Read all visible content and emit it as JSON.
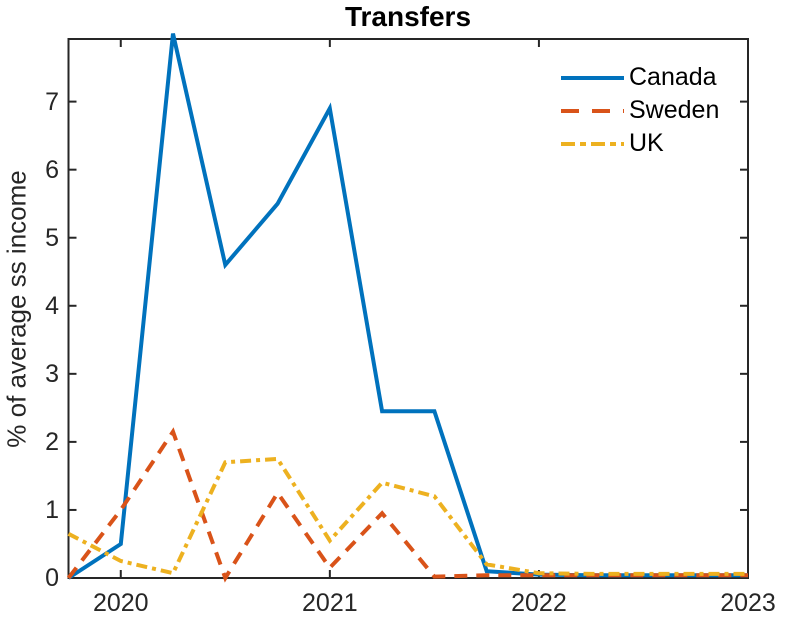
{
  "figure": {
    "background": "#FFFFFF"
  },
  "chart_data": {
    "type": "line",
    "title": "Transfers",
    "xlabel": "",
    "ylabel": "% of average ss income",
    "x": [
      2019.75,
      2020.0,
      2020.25,
      2020.5,
      2020.75,
      2021.0,
      2021.25,
      2021.5,
      2021.75,
      2022.0,
      2022.25,
      2022.5,
      2022.75,
      2023.0
    ],
    "series": [
      {
        "name": "Canada",
        "color": "#0072BD",
        "style": "solid",
        "values": [
          0,
          0.5,
          8.0,
          4.6,
          5.5,
          6.9,
          2.45,
          2.45,
          0.1,
          0.05,
          0.04,
          0.04,
          0.04,
          0.04
        ]
      },
      {
        "name": "Sweden",
        "color": "#D95319",
        "style": "dashed",
        "values": [
          0,
          1.0,
          2.15,
          0,
          1.25,
          0.15,
          0.95,
          0.02,
          0.04,
          0.04,
          0.04,
          0.04,
          0.04,
          0.04
        ]
      },
      {
        "name": "UK",
        "color": "#EDB120",
        "style": "dashdot",
        "values": [
          0.65,
          0.25,
          0.07,
          1.7,
          1.75,
          0.55,
          1.4,
          1.2,
          0.2,
          0.07,
          0.06,
          0.06,
          0.06,
          0.06
        ]
      }
    ],
    "xlim": [
      2019.75,
      2023
    ],
    "ylim": [
      0,
      7.92
    ],
    "xticks": [
      2020,
      2021,
      2022,
      2023
    ],
    "xtick_labels": [
      "2020",
      "2021",
      "2022",
      "2023"
    ],
    "yticks": [
      0,
      1,
      2,
      3,
      4,
      5,
      6,
      7
    ],
    "ytick_labels": [
      "0",
      "1",
      "2",
      "3",
      "4",
      "5",
      "6",
      "7"
    ],
    "grid": false,
    "legend_position": "upper right",
    "axes_color": "#262626"
  }
}
